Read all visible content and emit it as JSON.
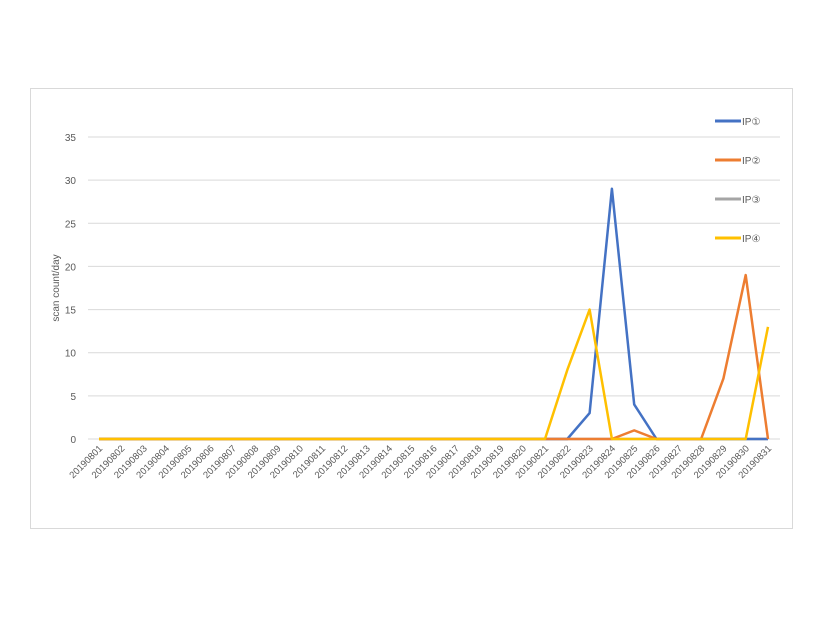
{
  "chart_data": {
    "type": "line",
    "title": "",
    "xlabel": "",
    "ylabel": "scan count/day",
    "ylim": [
      0,
      35
    ],
    "yticks": [
      0,
      5,
      10,
      15,
      20,
      25,
      30,
      35
    ],
    "grid": true,
    "legend_position": "right",
    "categories": [
      "20190801",
      "20190802",
      "20190803",
      "20190804",
      "20190805",
      "20190806",
      "20190807",
      "20190808",
      "20190809",
      "20190810",
      "20190811",
      "20190812",
      "20190813",
      "20190814",
      "20190815",
      "20190816",
      "20190817",
      "20190818",
      "20190819",
      "20190820",
      "20190821",
      "20190822",
      "20190823",
      "20190824",
      "20190825",
      "20190826",
      "20190827",
      "20190828",
      "20190829",
      "20190830",
      "20190831"
    ],
    "series": [
      {
        "name": "IP①",
        "color": "#4472c4",
        "values": [
          0,
          0,
          0,
          0,
          0,
          0,
          0,
          0,
          0,
          0,
          0,
          0,
          0,
          0,
          0,
          0,
          0,
          0,
          0,
          0,
          0,
          0,
          3,
          29,
          4,
          0,
          0,
          0,
          0,
          0,
          0
        ]
      },
      {
        "name": "IP②",
        "color": "#ed7d31",
        "values": [
          0,
          0,
          0,
          0,
          0,
          0,
          0,
          0,
          0,
          0,
          0,
          0,
          0,
          0,
          0,
          0,
          0,
          0,
          0,
          0,
          0,
          0,
          0,
          0,
          1,
          0,
          0,
          0,
          7,
          19,
          0
        ]
      },
      {
        "name": "IP③",
        "color": "#a5a5a5",
        "values": [
          0,
          0,
          0,
          0,
          0,
          0,
          0,
          0,
          0,
          0,
          0,
          0,
          0,
          0,
          0,
          0,
          0,
          0,
          0,
          0,
          0,
          0,
          0,
          0,
          0,
          0,
          0,
          0,
          0,
          0,
          0
        ]
      },
      {
        "name": "IP④",
        "color": "#ffc000",
        "values": [
          0,
          0,
          0,
          0,
          0,
          0,
          0,
          0,
          0,
          0,
          0,
          0,
          0,
          0,
          0,
          0,
          0,
          0,
          0,
          0,
          0,
          8,
          15,
          0,
          0,
          0,
          0,
          0,
          0,
          0,
          13
        ]
      }
    ]
  }
}
